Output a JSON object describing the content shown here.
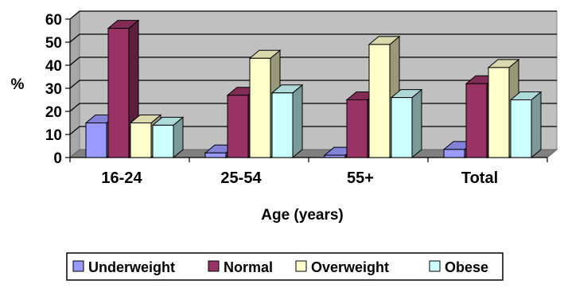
{
  "chart_data": {
    "type": "bar",
    "style": "3d-clustered-column",
    "title": "",
    "xlabel": "Age (years)",
    "ylabel": "%",
    "ylim": [
      0,
      60
    ],
    "yticks": [
      "0",
      "10",
      "20",
      "30",
      "40",
      "50",
      "60"
    ],
    "grid": true,
    "legend_position": "bottom",
    "categories": [
      "16-24",
      "25-54",
      "55+",
      "Total"
    ],
    "series": [
      {
        "name": "Underweight",
        "color": "#9999ff",
        "values": [
          15,
          2,
          1,
          3.5
        ]
      },
      {
        "name": "Normal",
        "color": "#993366",
        "values": [
          56,
          27,
          25,
          32
        ]
      },
      {
        "name": "Overweight",
        "color": "#ffffcc",
        "values": [
          15,
          43,
          49,
          39
        ]
      },
      {
        "name": "Obese",
        "color": "#ccffff",
        "values": [
          14,
          28,
          26,
          25
        ]
      }
    ]
  }
}
